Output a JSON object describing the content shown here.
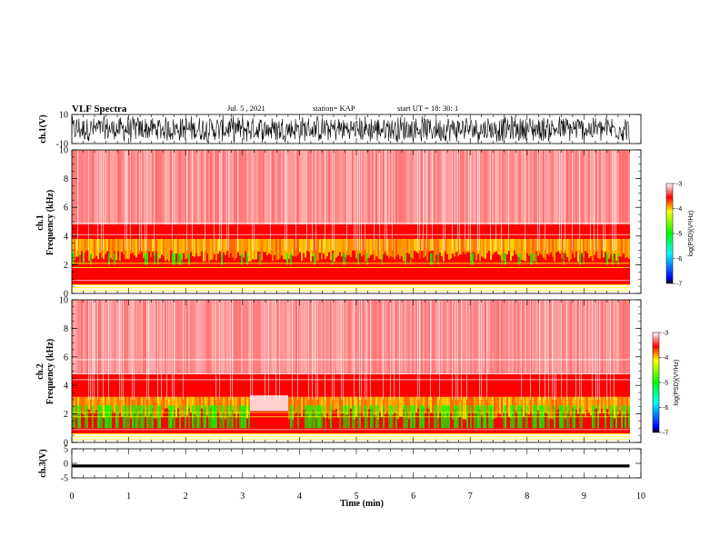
{
  "header": {
    "title": "VLF Spectra",
    "date": "Jul. 5 , 2021",
    "station": "station= KAP",
    "start": "start UT = 18: 30: 1"
  },
  "colors": {
    "high": "#ff0000",
    "upper_mid": "#ffff00",
    "mid": "#00ff00",
    "lower_mid": "#00ffff",
    "low": "#0000ff",
    "floor": "#000000",
    "background": "#ffffff"
  },
  "chart_data": [
    {
      "type": "line",
      "panel": "ch1-waveform",
      "ylabel": "ch.1(V)",
      "ylim": [
        -10,
        10
      ],
      "yticks": [
        "10",
        "-10"
      ],
      "xlim": [
        0,
        10
      ],
      "note": "dense noise-like waveform spanning roughly -10 to 10 V"
    },
    {
      "type": "heatmap",
      "panel": "ch1-spectrogram",
      "ylabel": "ch.1\nFrequency (kHz)",
      "ylim": [
        0,
        10
      ],
      "yticks": [
        "0",
        "2",
        "4",
        "6",
        "8",
        "10"
      ],
      "xlim": [
        0,
        9.8
      ],
      "colorbar": {
        "label": "log(PSD)(V²/Hz)",
        "ticks": [
          "-3",
          "-4",
          "-5",
          "-6",
          "-7"
        ],
        "range": [
          -7,
          -3
        ]
      }
    },
    {
      "type": "heatmap",
      "panel": "ch2-spectrogram",
      "ylabel": "ch.2\nFrequency (kHz)",
      "ylim": [
        0,
        10
      ],
      "yticks": [
        "0",
        "2",
        "4",
        "6",
        "8",
        "10"
      ],
      "xlim": [
        0,
        9.8
      ],
      "colorbar": {
        "label": "log(PSD)(V²/Hz)",
        "ticks": [
          "-3",
          "-4",
          "-5",
          "-6",
          "-7"
        ],
        "range": [
          -7,
          -3
        ]
      }
    },
    {
      "type": "line",
      "panel": "ch3-waveform",
      "ylabel": "ch.3(V)",
      "ylim": [
        -5,
        5
      ],
      "yticks": [
        "5",
        "0",
        "-5"
      ],
      "xlim": [
        0,
        10
      ],
      "note": "thick constant band near -1 V"
    }
  ],
  "xaxis": {
    "label": "Time (min)",
    "ticks": [
      "0",
      "1",
      "2",
      "3",
      "4",
      "5",
      "6",
      "7",
      "8",
      "9",
      "10"
    ]
  }
}
